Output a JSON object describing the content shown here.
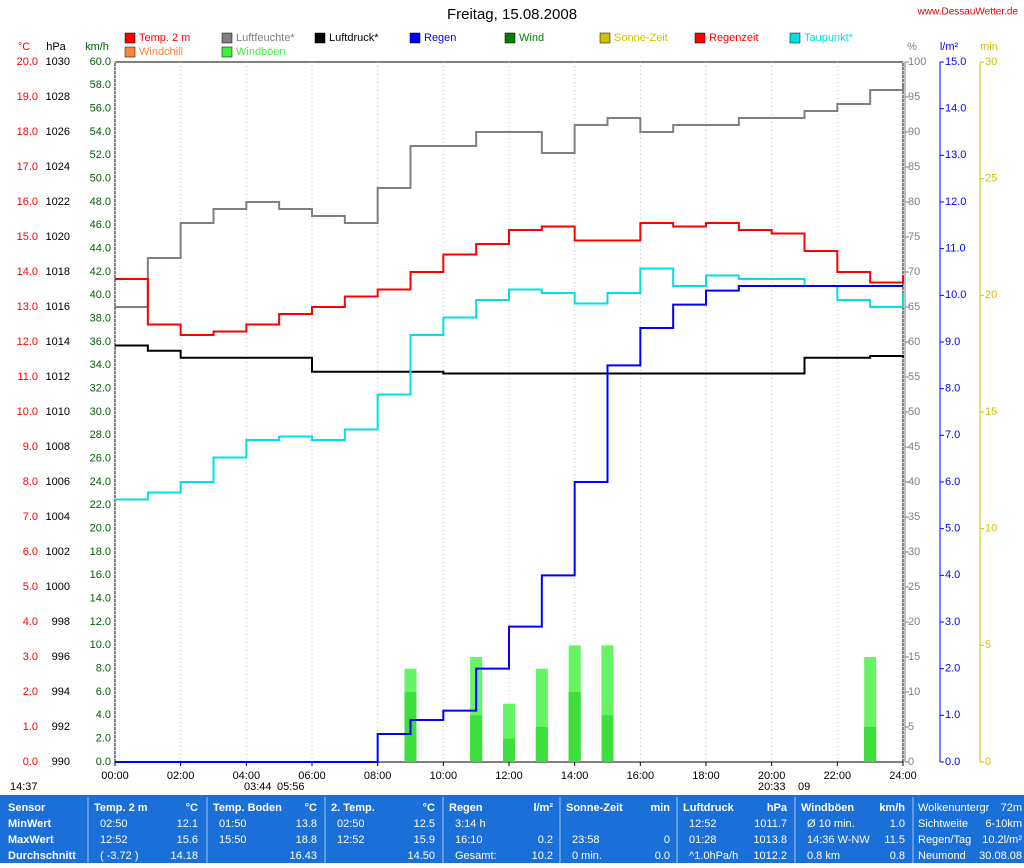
{
  "chart_data": {
    "type": "line",
    "title": "Freitag, 15.08.2008",
    "source": "www.DessauWetter.de",
    "x": [
      0,
      1,
      2,
      3,
      4,
      5,
      6,
      7,
      8,
      9,
      10,
      11,
      12,
      13,
      14,
      15,
      16,
      17,
      18,
      19,
      20,
      21,
      22,
      23,
      24
    ],
    "xlim": [
      0,
      24
    ],
    "xticks": [
      {
        "value": 0,
        "label": "00:00"
      },
      {
        "value": 2,
        "label": "02:00"
      },
      {
        "value": 4,
        "label": "04:00"
      },
      {
        "value": 6,
        "label": "06:00"
      },
      {
        "value": 8,
        "label": "08:00"
      },
      {
        "value": 10,
        "label": "10:00"
      },
      {
        "value": 12,
        "label": "12:00"
      },
      {
        "value": 14,
        "label": "14:00"
      },
      {
        "value": 16,
        "label": "16:00"
      },
      {
        "value": 18,
        "label": "18:00"
      },
      {
        "value": 20,
        "label": "20:00"
      },
      {
        "value": 22,
        "label": "22:00"
      },
      {
        "value": 24,
        "label": "24:00"
      }
    ],
    "grid": true,
    "axes": [
      {
        "label": "°C",
        "color": "#ff0000",
        "side": "left",
        "lim": [
          0,
          20
        ],
        "ticks": [
          {
            "value": 0,
            "label": "0.0"
          },
          {
            "value": 1,
            "label": "1.0"
          },
          {
            "value": 2,
            "label": "2.0"
          },
          {
            "value": 3,
            "label": "3.0"
          },
          {
            "value": 4,
            "label": "4.0"
          },
          {
            "value": 5,
            "label": "5.0"
          },
          {
            "value": 6,
            "label": "6.0"
          },
          {
            "value": 7,
            "label": "7.0"
          },
          {
            "value": 8,
            "label": "8.0"
          },
          {
            "value": 9,
            "label": "9.0"
          },
          {
            "value": 10,
            "label": "10.0"
          },
          {
            "value": 11,
            "label": "11.0"
          },
          {
            "value": 12,
            "label": "12.0"
          },
          {
            "value": 13,
            "label": "13.0"
          },
          {
            "value": 14,
            "label": "14.0"
          },
          {
            "value": 15,
            "label": "15.0"
          },
          {
            "value": 16,
            "label": "16.0"
          },
          {
            "value": 17,
            "label": "17.0"
          },
          {
            "value": 18,
            "label": "18.0"
          },
          {
            "value": 19,
            "label": "19.0"
          },
          {
            "value": 20,
            "label": "20.0"
          }
        ]
      },
      {
        "label": "hPa",
        "color": "#000000",
        "side": "left",
        "lim": [
          990,
          1030
        ],
        "ticks": [
          990,
          992,
          994,
          996,
          998,
          1000,
          1002,
          1004,
          1006,
          1008,
          1010,
          1012,
          1014,
          1016,
          1018,
          1020,
          1022,
          1024,
          1026,
          1028,
          1030
        ]
      },
      {
        "label": "km/h",
        "color": "#006000",
        "side": "left",
        "lim": [
          0,
          60
        ],
        "ticks": [
          {
            "value": 0,
            "label": "0.0"
          },
          {
            "value": 2,
            "label": "2.0"
          },
          {
            "value": 4,
            "label": "4.0"
          },
          {
            "value": 6,
            "label": "6.0"
          },
          {
            "value": 8,
            "label": "8.0"
          },
          {
            "value": 10,
            "label": "10.0"
          },
          {
            "value": 12,
            "label": "12.0"
          },
          {
            "value": 14,
            "label": "14.0"
          },
          {
            "value": 16,
            "label": "16.0"
          },
          {
            "value": 18,
            "label": "18.0"
          },
          {
            "value": 20,
            "label": "20.0"
          },
          {
            "value": 22,
            "label": "22.0"
          },
          {
            "value": 24,
            "label": "24.0"
          },
          {
            "value": 26,
            "label": "26.0"
          },
          {
            "value": 28,
            "label": "28.0"
          },
          {
            "value": 30,
            "label": "30.0"
          },
          {
            "value": 32,
            "label": "32.0"
          },
          {
            "value": 34,
            "label": "34.0"
          },
          {
            "value": 36,
            "label": "36.0"
          },
          {
            "value": 38,
            "label": "38.0"
          },
          {
            "value": 40,
            "label": "40.0"
          },
          {
            "value": 42,
            "label": "42.0"
          },
          {
            "value": 44,
            "label": "44.0"
          },
          {
            "value": 46,
            "label": "46.0"
          },
          {
            "value": 48,
            "label": "48.0"
          },
          {
            "value": 50,
            "label": "50.0"
          },
          {
            "value": 52,
            "label": "52.0"
          },
          {
            "value": 54,
            "label": "54.0"
          },
          {
            "value": 56,
            "label": "56.0"
          },
          {
            "value": 58,
            "label": "58.0"
          },
          {
            "value": 60,
            "label": "60.0"
          }
        ]
      },
      {
        "label": "%",
        "color": "#808080",
        "side": "right",
        "lim": [
          0,
          100
        ],
        "ticks": [
          0,
          5,
          10,
          15,
          20,
          25,
          30,
          35,
          40,
          45,
          50,
          55,
          60,
          65,
          70,
          75,
          80,
          85,
          90,
          95,
          100
        ]
      },
      {
        "label": "l/m²",
        "color": "#0000ff",
        "side": "right",
        "lim": [
          0,
          15
        ],
        "ticks": [
          {
            "value": 0,
            "label": "0.0"
          },
          {
            "value": 1,
            "label": "1.0"
          },
          {
            "value": 2,
            "label": "2.0"
          },
          {
            "value": 3,
            "label": "3.0"
          },
          {
            "value": 4,
            "label": "4.0"
          },
          {
            "value": 5,
            "label": "5.0"
          },
          {
            "value": 6,
            "label": "6.0"
          },
          {
            "value": 7,
            "label": "7.0"
          },
          {
            "value": 8,
            "label": "8.0"
          },
          {
            "value": 9,
            "label": "9.0"
          },
          {
            "value": 10,
            "label": "10.0"
          },
          {
            "value": 11,
            "label": "11.0"
          },
          {
            "value": 12,
            "label": "12.0"
          },
          {
            "value": 13,
            "label": "13.0"
          },
          {
            "value": 14,
            "label": "14.0"
          },
          {
            "value": 15,
            "label": "15.0"
          }
        ]
      },
      {
        "label": "min",
        "color": "#d0c000",
        "side": "right",
        "lim": [
          0,
          30
        ],
        "ticks": [
          0,
          5,
          10,
          15,
          20,
          25,
          30
        ]
      }
    ],
    "series": [
      {
        "name": "Temp. 2 m",
        "color": "#ff0000",
        "axis": 0,
        "style": "line",
        "values": [
          13.8,
          12.5,
          12.2,
          12.3,
          12.5,
          12.8,
          13.0,
          13.3,
          13.5,
          14.0,
          14.5,
          14.8,
          15.2,
          15.3,
          14.9,
          14.9,
          15.4,
          15.3,
          15.4,
          15.2,
          15.1,
          14.6,
          14.0,
          13.7,
          13.9
        ]
      },
      {
        "name": "Luftfeuchte*",
        "color": "#808080",
        "axis": 3,
        "style": "line",
        "values": [
          65,
          72,
          77,
          79,
          80,
          79,
          78,
          77,
          82,
          88,
          88,
          90,
          90,
          87,
          91,
          92,
          90,
          91,
          91,
          92,
          92,
          93,
          94,
          96,
          97
        ]
      },
      {
        "name": "Luftdruck*",
        "color": "#000000",
        "axis": 1,
        "style": "line",
        "values": [
          1013.8,
          1013.5,
          1013.1,
          1013.1,
          1013.1,
          1013.1,
          1012.3,
          1012.3,
          1012.3,
          1012.3,
          1012.2,
          1012.2,
          1012.2,
          1012.2,
          1012.2,
          1012.2,
          1012.2,
          1012.2,
          1012.2,
          1012.2,
          1012.2,
          1013.1,
          1013.1,
          1013.2,
          1013.1
        ]
      },
      {
        "name": "Regen",
        "color": "#0000ff",
        "axis": 4,
        "style": "line",
        "values": [
          0,
          0,
          0,
          0,
          0,
          0,
          0,
          0,
          0.6,
          0.9,
          1.1,
          2.0,
          2.9,
          4.0,
          6.0,
          8.5,
          9.3,
          9.8,
          10.1,
          10.2,
          10.2,
          10.2,
          10.2,
          10.2,
          10.2
        ]
      },
      {
        "name": "Wind",
        "color": "#008000",
        "axis": 2,
        "style": "bars",
        "values": [
          0,
          0,
          0,
          0,
          0,
          0,
          0,
          0,
          0,
          6,
          0,
          4,
          2,
          3,
          6,
          4,
          0,
          0,
          0,
          0,
          0,
          0,
          0,
          3,
          0
        ]
      },
      {
        "name": "Taupunkt*",
        "color": "#00e0e0",
        "axis": 0,
        "style": "line",
        "values": [
          7.5,
          7.7,
          8.0,
          8.7,
          9.2,
          9.3,
          9.2,
          9.5,
          10.5,
          12.2,
          12.7,
          13.2,
          13.5,
          13.4,
          13.1,
          13.4,
          14.1,
          13.6,
          13.9,
          13.8,
          13.8,
          13.6,
          13.2,
          13.0,
          13.4
        ]
      },
      {
        "name": "Windböen",
        "color": "#40f040",
        "axis": 2,
        "style": "bars",
        "values": [
          0,
          0,
          0,
          0,
          0,
          0,
          0,
          0,
          0,
          8,
          0,
          9,
          5,
          8,
          10,
          10,
          0,
          0,
          0,
          0,
          0,
          0,
          0,
          9,
          0
        ]
      }
    ],
    "legend_only": [
      {
        "name": "Windchill",
        "color": "#ff8040"
      },
      {
        "name": "Sonne-Zeit",
        "color": "#d0c000"
      },
      {
        "name": "Regenzeit",
        "color": "#ff0000"
      }
    ],
    "timeline": [
      "14:37",
      "03:44",
      "05:56",
      "20:33",
      "09"
    ],
    "table": {
      "sensor": [
        "Sensor",
        "MinWert",
        "MaxWert",
        "Durchschnitt"
      ],
      "panels": [
        {
          "title": "Temp. 2 m",
          "unit": "°C",
          "rows": [
            [
              "02:50",
              "12.1"
            ],
            [
              "12:52",
              "15.6"
            ],
            [
              "( -3.72 )",
              "14.18"
            ]
          ]
        },
        {
          "title": "Temp. Boden",
          "unit": "°C",
          "rows": [
            [
              "01:50",
              "13.8"
            ],
            [
              "15:50",
              "18.8"
            ],
            [
              null,
              "16.43"
            ]
          ]
        },
        {
          "title": "2. Temp.",
          "unit": "°C",
          "rows": [
            [
              "02:50",
              "12.5"
            ],
            [
              "12:52",
              "15.9"
            ],
            [
              null,
              "14.50"
            ]
          ]
        },
        {
          "title": "Regen",
          "unit": "l/m²",
          "rows": [
            [
              "3:14 h",
              null
            ],
            [
              "16:10",
              "0.2"
            ],
            [
              "Gesamt:",
              "10.2"
            ]
          ]
        },
        {
          "title": "Sonne-Zeit",
          "unit": "min",
          "rows": [
            [
              null,
              null
            ],
            [
              "23:58",
              "0"
            ],
            [
              "0 min.",
              "0.0"
            ]
          ]
        },
        {
          "title": "Luftdruck",
          "unit": "hPa",
          "rows": [
            [
              "12:52",
              "1011.7"
            ],
            [
              "01:28",
              "1013.8"
            ],
            [
              "^1.0hPa/h",
              "1012.2"
            ]
          ]
        },
        {
          "title": "Windböen",
          "unit": "km/h",
          "rows": [
            [
              "Ø 10 min.",
              "1.0"
            ],
            [
              "14:36  W-NW",
              "11.5"
            ],
            [
              "0.8 km",
              "0.8"
            ]
          ]
        }
      ],
      "extra": [
        [
          "Wolkenuntergr",
          "72m"
        ],
        [
          "Sichtweite",
          "6-10km"
        ],
        [
          "Regen/Tag",
          "10.2l/m²"
        ],
        [
          "Neumond",
          "30.08.08"
        ]
      ]
    }
  }
}
